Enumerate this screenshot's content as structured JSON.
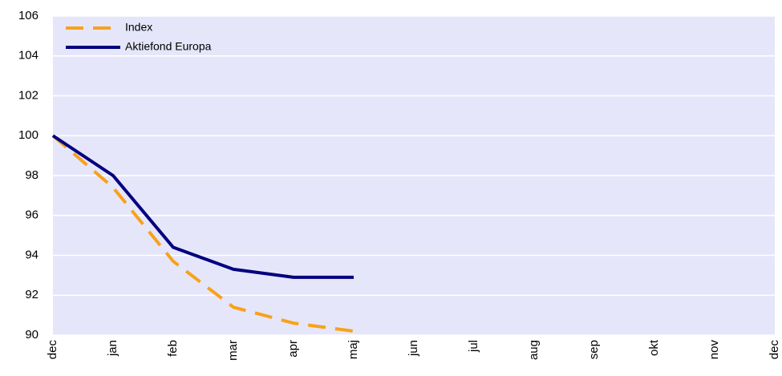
{
  "chart_data": {
    "type": "line",
    "categories": [
      "dec",
      "jan",
      "feb",
      "mar",
      "apr",
      "maj",
      "jun",
      "jul",
      "aug",
      "sep",
      "okt",
      "nov",
      "dec"
    ],
    "series": [
      {
        "name": "Index",
        "color": "#f7a21b",
        "dashed": true,
        "values": [
          100,
          97.4,
          93.7,
          91.4,
          90.6,
          90.2,
          null,
          null,
          null,
          null,
          null,
          null,
          null
        ]
      },
      {
        "name": "Aktiefond Europa",
        "color": "#000080",
        "dashed": false,
        "values": [
          100,
          98.0,
          94.4,
          93.3,
          92.9,
          92.9,
          null,
          null,
          null,
          null,
          null,
          null,
          null
        ]
      }
    ],
    "ylim": [
      90,
      106
    ],
    "yticks": [
      90,
      92,
      94,
      96,
      98,
      100,
      102,
      104,
      106
    ],
    "grid": true,
    "legend": "top-left",
    "background": "#e6e6fa"
  }
}
